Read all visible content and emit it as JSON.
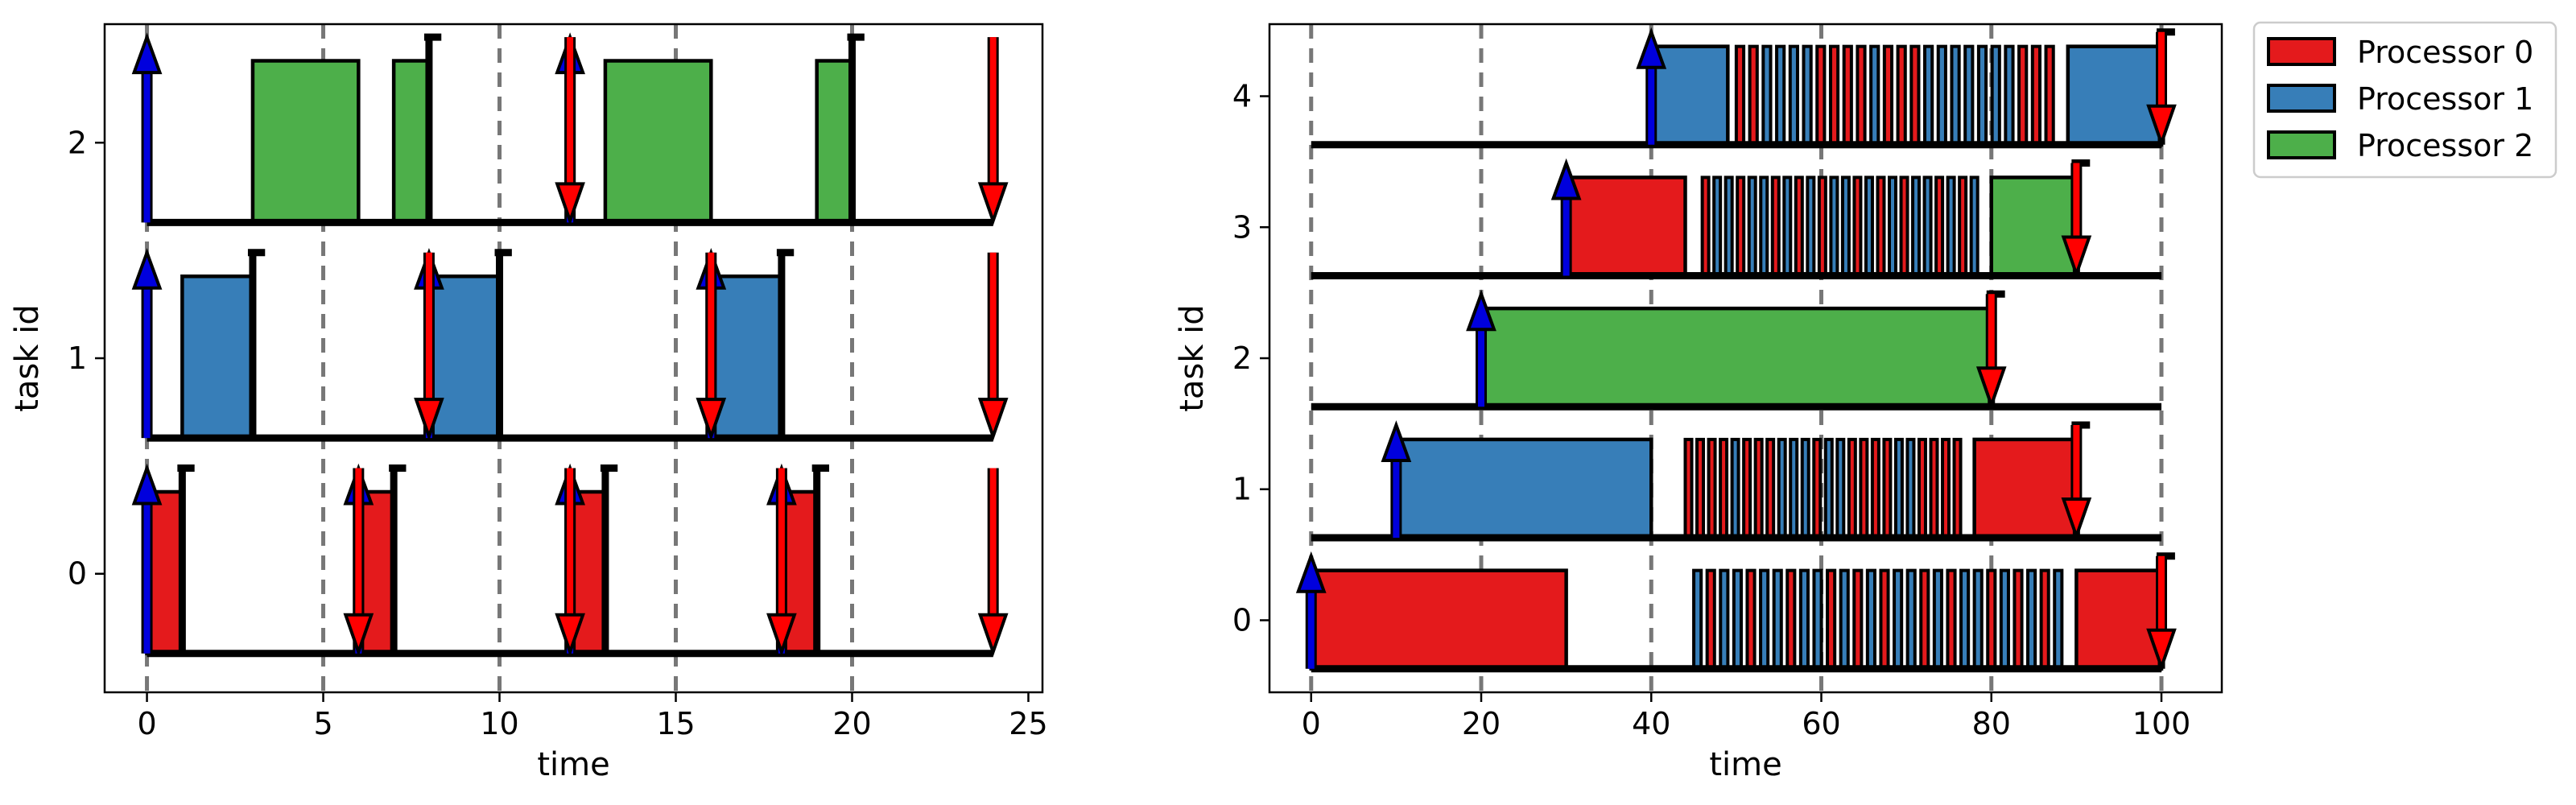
{
  "chart_data": [
    {
      "type": "gantt",
      "xlabel": "time",
      "ylabel": "task id",
      "xlim": [
        -1.2,
        25.4
      ],
      "ylim": [
        -0.55,
        2.55
      ],
      "x_ticks": [
        0,
        5,
        10,
        15,
        20,
        25
      ],
      "y_ticks": [
        0,
        1,
        2
      ],
      "vlines": [
        0,
        5,
        10,
        15,
        20
      ],
      "baselines": [
        {
          "task": 0,
          "from": 0,
          "to": 24
        },
        {
          "task": 1,
          "from": 0,
          "to": 24
        },
        {
          "task": 2,
          "from": 0,
          "to": 24
        }
      ],
      "bars": [
        {
          "task": 0,
          "start": 0,
          "end": 1,
          "processor": 0
        },
        {
          "task": 0,
          "start": 6,
          "end": 7,
          "processor": 0
        },
        {
          "task": 0,
          "start": 12,
          "end": 13,
          "processor": 0
        },
        {
          "task": 0,
          "start": 18,
          "end": 19,
          "processor": 0
        },
        {
          "task": 1,
          "start": 1,
          "end": 3,
          "processor": 1
        },
        {
          "task": 1,
          "start": 8,
          "end": 10,
          "processor": 1
        },
        {
          "task": 1,
          "start": 16,
          "end": 18,
          "processor": 1
        },
        {
          "task": 2,
          "start": 3,
          "end": 6,
          "processor": 2
        },
        {
          "task": 2,
          "start": 7,
          "end": 8,
          "processor": 2
        },
        {
          "task": 2,
          "start": 13,
          "end": 16,
          "processor": 2
        },
        {
          "task": 2,
          "start": 19,
          "end": 20,
          "processor": 2
        }
      ],
      "releases": [
        {
          "task": 0,
          "t": 0
        },
        {
          "task": 0,
          "t": 6
        },
        {
          "task": 0,
          "t": 12
        },
        {
          "task": 0,
          "t": 18
        },
        {
          "task": 1,
          "t": 0
        },
        {
          "task": 1,
          "t": 8
        },
        {
          "task": 1,
          "t": 16
        },
        {
          "task": 2,
          "t": 0
        },
        {
          "task": 2,
          "t": 12
        }
      ],
      "deadlines": [
        {
          "task": 0,
          "t": 6
        },
        {
          "task": 0,
          "t": 12
        },
        {
          "task": 0,
          "t": 18
        },
        {
          "task": 0,
          "t": 24
        },
        {
          "task": 1,
          "t": 8
        },
        {
          "task": 1,
          "t": 16
        },
        {
          "task": 1,
          "t": 24
        },
        {
          "task": 2,
          "t": 12
        },
        {
          "task": 2,
          "t": 24
        }
      ],
      "completions": [
        {
          "task": 0,
          "t": 1
        },
        {
          "task": 0,
          "t": 7
        },
        {
          "task": 0,
          "t": 13
        },
        {
          "task": 0,
          "t": 19
        },
        {
          "task": 1,
          "t": 3
        },
        {
          "task": 1,
          "t": 10
        },
        {
          "task": 1,
          "t": 18
        },
        {
          "task": 2,
          "t": 8
        },
        {
          "task": 2,
          "t": 20
        }
      ],
      "grid": false
    },
    {
      "type": "gantt",
      "xlabel": "time",
      "ylabel": "task id",
      "xlim": [
        -4.9,
        107.1
      ],
      "ylim": [
        -0.55,
        4.55
      ],
      "x_ticks": [
        0,
        20,
        40,
        60,
        80,
        100
      ],
      "y_ticks": [
        0,
        1,
        2,
        3,
        4
      ],
      "vlines": [
        0,
        20,
        40,
        60,
        80,
        100
      ],
      "baselines": [
        {
          "task": 0,
          "from": 0,
          "to": 100
        },
        {
          "task": 1,
          "from": 0,
          "to": 100
        },
        {
          "task": 2,
          "from": 0,
          "to": 100
        },
        {
          "task": 3,
          "from": 0,
          "to": 100
        },
        {
          "task": 4,
          "from": 0,
          "to": 100
        }
      ],
      "bars": [
        {
          "task": 0,
          "start": 0,
          "end": 30,
          "processor": 0
        },
        {
          "task": 0,
          "start": 90,
          "end": 100,
          "processor": 0
        },
        {
          "task": 1,
          "start": 10,
          "end": 40,
          "processor": 1
        },
        {
          "task": 1,
          "start": 78,
          "end": 90,
          "processor": 0
        },
        {
          "task": 2,
          "start": 20,
          "end": 80,
          "processor": 2
        },
        {
          "task": 3,
          "start": 30,
          "end": 44,
          "processor": 0
        },
        {
          "task": 3,
          "start": 80,
          "end": 90,
          "processor": 2
        },
        {
          "task": 4,
          "start": 40,
          "end": 49,
          "processor": 1
        },
        {
          "task": 4,
          "start": 89,
          "end": 100,
          "processor": 1
        }
      ],
      "dense_segments": [
        {
          "task": 0,
          "from": 45,
          "to": 89,
          "pattern": [
            1,
            0,
            1,
            1,
            0,
            1,
            1,
            0,
            1,
            1,
            0,
            1,
            0,
            1,
            0,
            1,
            1,
            0,
            1,
            0,
            1,
            1,
            0,
            1,
            0,
            1,
            0,
            1
          ]
        },
        {
          "task": 1,
          "from": 44,
          "to": 77,
          "pattern": [
            0,
            0,
            0,
            0,
            1,
            0,
            0,
            0,
            1,
            1,
            1,
            0,
            1,
            1,
            0,
            0,
            0,
            0,
            1,
            1,
            0,
            0,
            0,
            0
          ]
        },
        {
          "task": 3,
          "from": 46,
          "to": 79,
          "pattern": [
            0,
            1,
            1,
            0,
            1,
            1,
            0,
            1,
            0,
            1,
            0,
            1,
            1,
            0,
            1,
            0,
            1,
            0,
            1,
            1,
            0,
            1,
            0,
            1
          ]
        },
        {
          "task": 4,
          "from": 50,
          "to": 88,
          "pattern": [
            0,
            0,
            1,
            1,
            1,
            1,
            0,
            0,
            0,
            0,
            1,
            0,
            0,
            0,
            1,
            1,
            1,
            1,
            1,
            1,
            1,
            0,
            0,
            0
          ]
        }
      ],
      "releases": [
        {
          "task": 0,
          "t": 0
        },
        {
          "task": 1,
          "t": 10
        },
        {
          "task": 2,
          "t": 20
        },
        {
          "task": 3,
          "t": 30
        },
        {
          "task": 4,
          "t": 40
        }
      ],
      "deadlines": [
        {
          "task": 0,
          "t": 100
        },
        {
          "task": 1,
          "t": 90
        },
        {
          "task": 2,
          "t": 80
        },
        {
          "task": 3,
          "t": 90
        },
        {
          "task": 4,
          "t": 100
        }
      ],
      "completions": [
        {
          "task": 0,
          "t": 100
        },
        {
          "task": 1,
          "t": 90
        },
        {
          "task": 2,
          "t": 80
        },
        {
          "task": 3,
          "t": 90
        },
        {
          "task": 4,
          "t": 100
        }
      ],
      "grid": false
    }
  ],
  "legend": {
    "placement": "outside-top-right",
    "entries": [
      {
        "label": "Processor 0",
        "color": "#e41a1c"
      },
      {
        "label": "Processor 1",
        "color": "#377eb8"
      },
      {
        "label": "Processor 2",
        "color": "#4daf4a"
      }
    ]
  },
  "colors": {
    "processors": [
      "#e41a1c",
      "#377eb8",
      "#4daf4a"
    ],
    "release_arrow": "#0000dd",
    "deadline_arrow": "#ff0000",
    "vline": "#777777"
  }
}
